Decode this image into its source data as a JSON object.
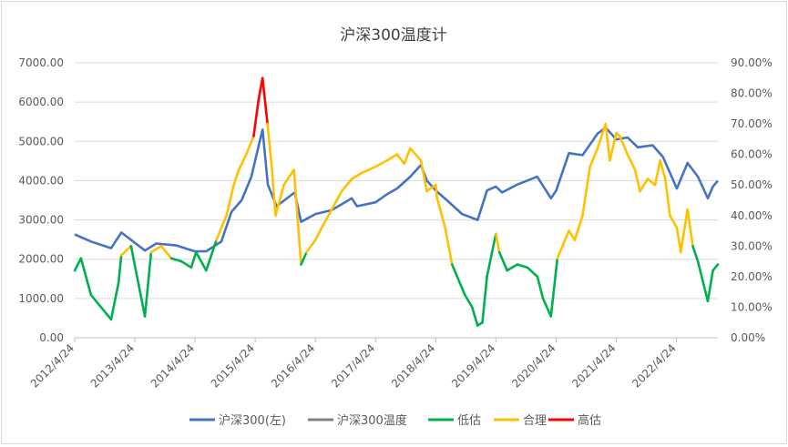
{
  "chart_data": {
    "type": "line",
    "title": "沪深300温度计",
    "x_ticks": [
      "2012/4/24",
      "2013/4/24",
      "2014/4/24",
      "2015/4/24",
      "2016/4/24",
      "2017/4/24",
      "2018/4/24",
      "2019/4/24",
      "2020/4/24",
      "2021/4/24",
      "2022/4/24"
    ],
    "x_range": [
      "2012/4/24",
      "2022/12/31"
    ],
    "y_left": {
      "ticks": [
        "0.00",
        "1000.00",
        "2000.00",
        "3000.00",
        "4000.00",
        "5000.00",
        "6000.00",
        "7000.00"
      ],
      "range": [
        0,
        7000
      ]
    },
    "y_right": {
      "ticks": [
        "0.00%",
        "10.00%",
        "20.00%",
        "30.00%",
        "40.00%",
        "50.00%",
        "60.00%",
        "70.00%",
        "80.00%",
        "90.00%"
      ],
      "range": [
        0,
        0.9
      ]
    },
    "grid": true,
    "legend_position": "bottom",
    "legend": [
      "沪深300(左)",
      "沪深300温度",
      "低估",
      "合理",
      "高估"
    ],
    "colors": {
      "index": "#4472c4",
      "temp": "#808080",
      "low": "#00b050",
      "fair": "#ffc000",
      "high": "#ff0000"
    },
    "thresholds": {
      "low_below": 0.28,
      "high_above": 0.7
    },
    "series": [
      {
        "name": "沪深300(左)",
        "axis": "left",
        "x": [
          "2012/4/24",
          "2012/8/1",
          "2012/12/1",
          "2013/2/1",
          "2013/6/24",
          "2013/9/1",
          "2014/1/1",
          "2014/4/24",
          "2014/7/1",
          "2014/10/1",
          "2014/12/1",
          "2015/2/1",
          "2015/4/1",
          "2015/6/8",
          "2015/7/10",
          "2015/9/1",
          "2015/12/20",
          "2016/1/28",
          "2016/4/24",
          "2016/8/1",
          "2016/11/30",
          "2017/1/1",
          "2017/4/24",
          "2017/7/1",
          "2017/9/1",
          "2017/11/20",
          "2018/1/24",
          "2018/3/1",
          "2018/4/24",
          "2018/7/1",
          "2018/10/1",
          "2019/1/3",
          "2019/3/1",
          "2019/4/24",
          "2019/6/1",
          "2019/9/1",
          "2019/12/31",
          "2020/3/23",
          "2020/4/24",
          "2020/7/10",
          "2020/10/1",
          "2020/12/31",
          "2021/2/18",
          "2021/4/24",
          "2021/7/1",
          "2021/9/1",
          "2021/12/1",
          "2022/2/1",
          "2022/4/26",
          "2022/6/30",
          "2022/9/1",
          "2022/10/31",
          "2022/12/1",
          "2022/12/31"
        ],
        "values": [
          2630,
          2450,
          2280,
          2680,
          2220,
          2400,
          2350,
          2200,
          2200,
          2450,
          3200,
          3500,
          4100,
          5300,
          3900,
          3350,
          3700,
          2950,
          3150,
          3250,
          3550,
          3350,
          3450,
          3650,
          3800,
          4100,
          4400,
          4000,
          3750,
          3500,
          3150,
          3000,
          3750,
          3850,
          3700,
          3900,
          4100,
          3550,
          3750,
          4700,
          4650,
          5200,
          5350,
          5050,
          5100,
          4850,
          4900,
          4600,
          3800,
          4450,
          4100,
          3550,
          3850,
          4000
        ]
      },
      {
        "name": "沪深300温度",
        "axis": "right",
        "x": [
          "2012/4/24",
          "2012/6/1",
          "2012/8/1",
          "2012/10/1",
          "2012/12/1",
          "2013/1/15",
          "2013/2/1",
          "2013/4/1",
          "2013/6/24",
          "2013/8/1",
          "2013/10/1",
          "2013/12/1",
          "2014/2/1",
          "2014/4/1",
          "2014/5/1",
          "2014/7/1",
          "2014/9/1",
          "2014/11/1",
          "2014/12/15",
          "2015/1/15",
          "2015/3/1",
          "2015/4/15",
          "2015/5/15",
          "2015/6/8",
          "2015/7/8",
          "2015/8/1",
          "2015/8/26",
          "2015/10/15",
          "2015/12/15",
          "2016/1/28",
          "2016/3/1",
          "2016/4/24",
          "2016/6/1",
          "2016/8/1",
          "2016/10/1",
          "2016/12/1",
          "2017/2/1",
          "2017/4/24",
          "2017/7/1",
          "2017/9/1",
          "2017/10/15",
          "2017/11/20",
          "2018/1/24",
          "2018/3/1",
          "2018/4/24",
          "2018/5/1",
          "2018/6/20",
          "2018/8/1",
          "2018/10/18",
          "2018/12/1",
          "2019/1/3",
          "2019/2/1",
          "2019/3/1",
          "2019/4/24",
          "2019/5/15",
          "2019/7/1",
          "2019/9/1",
          "2019/11/1",
          "2020/1/1",
          "2020/2/3",
          "2020/3/23",
          "2020/5/1",
          "2020/7/10",
          "2020/8/15",
          "2020/10/1",
          "2020/11/15",
          "2020/12/31",
          "2021/2/18",
          "2021/3/15",
          "2021/4/24",
          "2021/5/15",
          "2021/7/1",
          "2021/8/15",
          "2021/9/15",
          "2021/11/1",
          "2021/12/15",
          "2022/1/15",
          "2022/2/15",
          "2022/3/15",
          "2022/4/26",
          "2022/5/20",
          "2022/6/30",
          "2022/8/1",
          "2022/9/1",
          "2022/10/31",
          "2022/12/1",
          "2022/12/31"
        ],
        "values": [
          0.22,
          0.26,
          0.14,
          0.1,
          0.06,
          0.18,
          0.27,
          0.3,
          0.07,
          0.28,
          0.3,
          0.26,
          0.25,
          0.23,
          0.28,
          0.22,
          0.32,
          0.4,
          0.5,
          0.55,
          0.6,
          0.66,
          0.78,
          0.85,
          0.7,
          0.57,
          0.4,
          0.5,
          0.55,
          0.24,
          0.28,
          0.32,
          0.36,
          0.42,
          0.48,
          0.52,
          0.54,
          0.56,
          0.58,
          0.6,
          0.57,
          0.62,
          0.58,
          0.48,
          0.5,
          0.46,
          0.36,
          0.24,
          0.14,
          0.1,
          0.04,
          0.05,
          0.2,
          0.34,
          0.28,
          0.22,
          0.24,
          0.23,
          0.2,
          0.13,
          0.07,
          0.26,
          0.35,
          0.32,
          0.4,
          0.56,
          0.62,
          0.7,
          0.58,
          0.67,
          0.66,
          0.6,
          0.55,
          0.48,
          0.52,
          0.5,
          0.58,
          0.52,
          0.4,
          0.36,
          0.28,
          0.42,
          0.3,
          0.25,
          0.12,
          0.22,
          0.24
        ]
      }
    ]
  }
}
